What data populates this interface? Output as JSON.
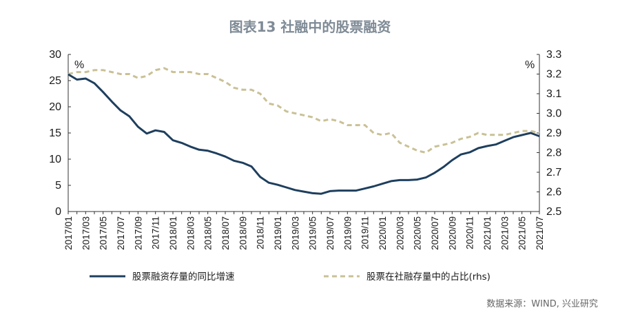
{
  "colors": {
    "series1": "#1e3f5e",
    "series2": "#c9c196",
    "title": "#7f8b96",
    "axis": "#333333"
  },
  "chart_data": {
    "type": "line",
    "title": "图表13 社融中的股票融资",
    "ylabel_left": "%",
    "ylabel_right": "%",
    "source": "数据来源：WIND, 兴业研究",
    "ylim_left": [
      0,
      30
    ],
    "ylim_right": [
      2.5,
      3.3
    ],
    "yticks_left": [
      "0",
      "5",
      "10",
      "15",
      "20",
      "25",
      "30"
    ],
    "yticks_right": [
      "2.5",
      "2.6",
      "2.7",
      "2.8",
      "2.9",
      "3.0",
      "3.1",
      "3.2",
      "3.3"
    ],
    "x_tick_labels": [
      "2017/01",
      "2017/03",
      "2017/05",
      "2017/07",
      "2017/09",
      "2017/11",
      "2018/01",
      "2018/03",
      "2018/05",
      "2018/07",
      "2018/09",
      "2018/11",
      "2019/01",
      "2019/03",
      "2019/05",
      "2019/07",
      "2019/09",
      "2019/11",
      "2020/01",
      "2020/03",
      "2020/05",
      "2020/07",
      "2020/09",
      "2020/11",
      "2021/01",
      "2021/03",
      "2021/05",
      "2021/07"
    ],
    "x": [
      "2017/01",
      "2017/02",
      "2017/03",
      "2017/04",
      "2017/05",
      "2017/06",
      "2017/07",
      "2017/08",
      "2017/09",
      "2017/10",
      "2017/11",
      "2017/12",
      "2018/01",
      "2018/02",
      "2018/03",
      "2018/04",
      "2018/05",
      "2018/06",
      "2018/07",
      "2018/08",
      "2018/09",
      "2018/10",
      "2018/11",
      "2018/12",
      "2019/01",
      "2019/02",
      "2019/03",
      "2019/04",
      "2019/05",
      "2019/06",
      "2019/07",
      "2019/08",
      "2019/09",
      "2019/10",
      "2019/11",
      "2019/12",
      "2020/01",
      "2020/02",
      "2020/03",
      "2020/04",
      "2020/05",
      "2020/06",
      "2020/07",
      "2020/08",
      "2020/09",
      "2020/10",
      "2020/11",
      "2020/12",
      "2021/01",
      "2021/02",
      "2021/03",
      "2021/04",
      "2021/05",
      "2021/06",
      "2021/07"
    ],
    "series": [
      {
        "name": "股票融资存量的同比增速",
        "axis": "left",
        "style": "solid",
        "values": [
          26.2,
          25.2,
          25.4,
          24.5,
          22.8,
          21.0,
          19.3,
          18.2,
          16.2,
          14.9,
          15.5,
          15.2,
          13.6,
          13.1,
          12.4,
          11.8,
          11.6,
          11.1,
          10.5,
          9.7,
          9.3,
          8.6,
          6.6,
          5.5,
          5.1,
          4.6,
          4.1,
          3.8,
          3.5,
          3.4,
          3.9,
          4.0,
          4.0,
          4.0,
          4.4,
          4.8,
          5.3,
          5.8,
          6.0,
          6.0,
          6.1,
          6.5,
          7.4,
          8.5,
          9.8,
          10.9,
          11.3,
          12.1,
          12.5,
          12.8,
          13.5,
          14.2,
          14.6,
          15.0,
          14.4
        ]
      },
      {
        "name": "股票在社融存量中的占比(rhs)",
        "axis": "right",
        "style": "dashed",
        "values": [
          3.2,
          3.21,
          3.21,
          3.22,
          3.22,
          3.21,
          3.2,
          3.2,
          3.18,
          3.19,
          3.22,
          3.23,
          3.21,
          3.21,
          3.21,
          3.2,
          3.2,
          3.18,
          3.16,
          3.13,
          3.12,
          3.12,
          3.1,
          3.05,
          3.04,
          3.01,
          3.0,
          2.99,
          2.98,
          2.96,
          2.97,
          2.96,
          2.94,
          2.94,
          2.94,
          2.9,
          2.89,
          2.9,
          2.85,
          2.83,
          2.81,
          2.8,
          2.83,
          2.84,
          2.85,
          2.87,
          2.88,
          2.9,
          2.89,
          2.89,
          2.89,
          2.9,
          2.91,
          2.91,
          2.9
        ]
      }
    ],
    "grid": false,
    "legend_position": "bottom"
  }
}
